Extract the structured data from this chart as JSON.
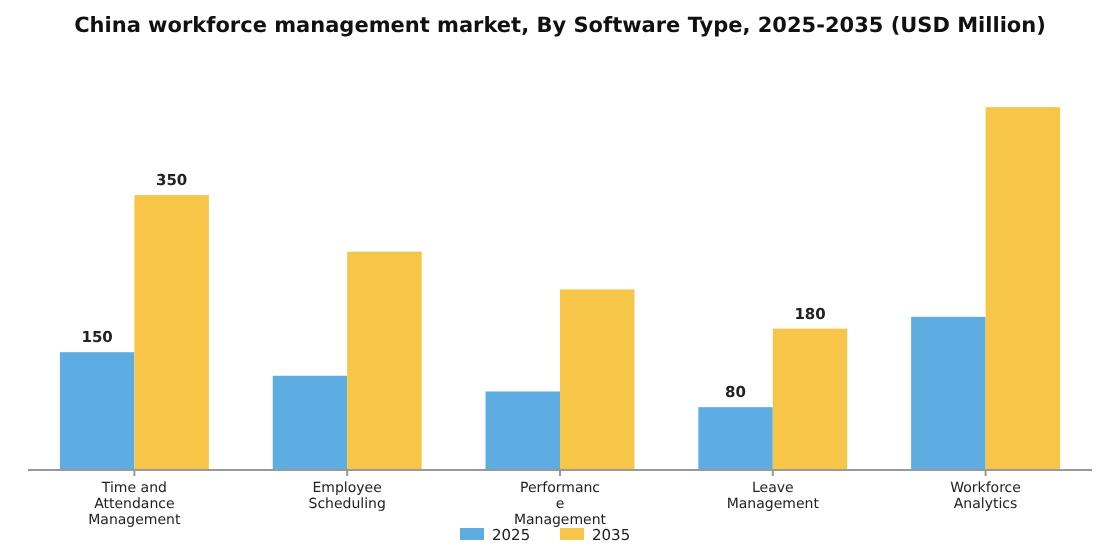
{
  "chart_data": {
    "type": "bar",
    "title": "China workforce management market, By Software Type, 2025-2035 (USD Million)",
    "categories": [
      "Time and\nAttendance\nManagement",
      "Employee\nScheduling",
      "Performanc\ne\nManagement",
      "Leave\nManagement",
      "Workforce\nAnalytics"
    ],
    "series": [
      {
        "name": "2025",
        "color": "#5dade2",
        "values": [
          150,
          120,
          100,
          80,
          195
        ],
        "value_labels": [
          "150",
          null,
          null,
          "80",
          null
        ]
      },
      {
        "name": "2035",
        "color": "#f7c548",
        "values": [
          350,
          278,
          230,
          180,
          462
        ],
        "value_labels": [
          "350",
          null,
          null,
          "180",
          null
        ]
      }
    ],
    "legend": "bottom"
  }
}
